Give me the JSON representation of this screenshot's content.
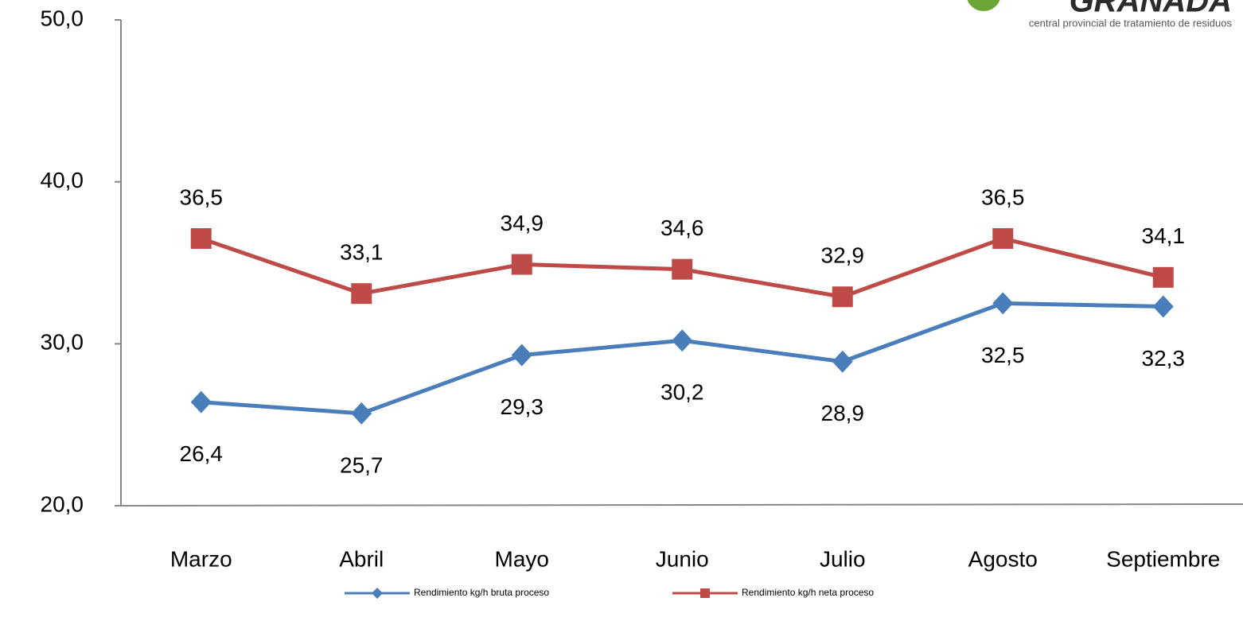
{
  "chart_data": {
    "type": "line",
    "logo": {
      "name": "GRANADA",
      "tagline": "central provincial de tratamiento de residuos"
    },
    "categories": [
      "Marzo",
      "Abril",
      "Mayo",
      "Junio",
      "Julio",
      "Agosto",
      "Septiembre"
    ],
    "series": [
      {
        "name": "Rendimiento kg/h bruta proceso",
        "color": "#4a7ebb",
        "marker": "diamond",
        "values": [
          26.4,
          25.7,
          29.3,
          30.2,
          28.9,
          32.5,
          32.3
        ],
        "value_labels": [
          "26,4",
          "25,7",
          "29,3",
          "30,2",
          "28,9",
          "32,5",
          "32,3"
        ]
      },
      {
        "name": "Rendimiento kg/h neta proceso",
        "color": "#be4b48",
        "marker": "square",
        "values": [
          36.5,
          33.1,
          34.9,
          34.6,
          32.9,
          36.5,
          34.1
        ],
        "value_labels": [
          "36,5",
          "33,1",
          "34,9",
          "34,6",
          "32,9",
          "36,5",
          "34,1"
        ]
      }
    ],
    "ylim": [
      20,
      50
    ],
    "yticks": [
      {
        "value": 20,
        "label": "20,0"
      },
      {
        "value": 30,
        "label": "30,0"
      },
      {
        "value": 40,
        "label": "40,0"
      },
      {
        "value": 50,
        "label": "50,0"
      }
    ],
    "grid": false,
    "legend": "bottom"
  }
}
